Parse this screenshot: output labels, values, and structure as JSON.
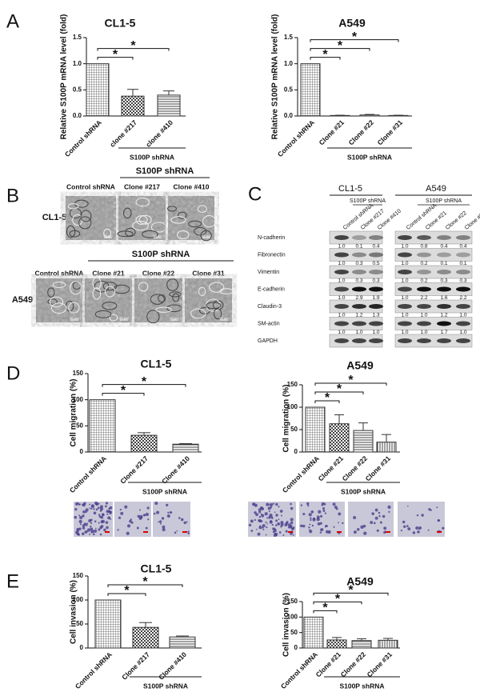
{
  "panels": [
    "A",
    "B",
    "C",
    "D",
    "E"
  ],
  "chart_data": [
    {
      "type": "bar",
      "title": "CL1-5",
      "y_label": "Relative S100P mRNA level (fold)",
      "categories": [
        "Control shRNA",
        "clone #217",
        "clone #410"
      ],
      "values": [
        1.0,
        0.38,
        0.4
      ],
      "errors": [
        0,
        0.13,
        0.08
      ],
      "bar_patterns": [
        "grid",
        "checker",
        "hlines"
      ],
      "color": "#333333",
      "ylim": [
        0,
        1.5
      ],
      "yticks": [
        {
          "value": 0,
          "label": "0.0"
        },
        {
          "value": 0.5,
          "label": "0.5"
        },
        {
          "value": 1,
          "label": "1.0"
        },
        {
          "value": 1.5,
          "label": "1.5"
        }
      ],
      "group_label": "S100P shRNA",
      "comparisons": [
        {
          "pair": [
            0,
            1
          ],
          "label": "*"
        },
        {
          "pair": [
            0,
            2
          ],
          "label": "*"
        }
      ]
    },
    {
      "type": "bar",
      "title": "A549",
      "y_label": "Relative S100P mRNA level (fold)",
      "categories": [
        "Control shRNA",
        "Clone #21",
        "Clone #22",
        "Clone #31"
      ],
      "values": [
        1.0,
        0.01,
        0.02,
        0.01
      ],
      "errors": [
        0,
        0.005,
        0.01,
        0.005
      ],
      "bar_patterns": [
        "grid",
        "checker",
        "hlines",
        "vlines"
      ],
      "color": "#333333",
      "ylim": [
        0,
        1.5
      ],
      "yticks": [
        {
          "value": 0,
          "label": "0.0"
        },
        {
          "value": 0.5,
          "label": "0.5"
        },
        {
          "value": 1,
          "label": "1.0"
        },
        {
          "value": 1.5,
          "label": "1.5"
        }
      ],
      "group_label": "S100P shRNA",
      "comparisons": [
        {
          "pair": [
            0,
            1
          ],
          "label": "*"
        },
        {
          "pair": [
            0,
            2
          ],
          "label": "*"
        },
        {
          "pair": [
            0,
            3
          ],
          "label": "*"
        }
      ]
    },
    {
      "type": "bar",
      "title": "CL1-5",
      "y_label": "Cell migration (%)",
      "categories": [
        "Control shRNA",
        "Clone #217",
        "Clone #410"
      ],
      "values": [
        100,
        32,
        15
      ],
      "errors": [
        0,
        5,
        1
      ],
      "bar_patterns": [
        "grid",
        "checker",
        "hlines"
      ],
      "color": "#333333",
      "ylim": [
        0,
        150
      ],
      "yticks": [
        0,
        50,
        100,
        150
      ],
      "group_label": "S100P shRNA",
      "comparisons": [
        {
          "pair": [
            0,
            1
          ],
          "label": "*"
        },
        {
          "pair": [
            0,
            2
          ],
          "label": "*"
        }
      ]
    },
    {
      "type": "bar",
      "title": "A549",
      "y_label": "Cell migration (%)",
      "categories": [
        "Control shRNA",
        "Clone #21",
        "Clone #22",
        "Clone #31"
      ],
      "values": [
        100,
        63,
        48,
        22
      ],
      "errors": [
        0,
        20,
        17,
        17
      ],
      "bar_patterns": [
        "grid",
        "checker",
        "hlines",
        "vlines"
      ],
      "color": "#333333",
      "ylim": [
        0,
        150
      ],
      "yticks": [
        0,
        50,
        100,
        150
      ],
      "group_label": "S100P shRNA",
      "comparisons": [
        {
          "pair": [
            0,
            1
          ],
          "label": "*"
        },
        {
          "pair": [
            0,
            2
          ],
          "label": "*"
        },
        {
          "pair": [
            0,
            3
          ],
          "label": "*"
        }
      ]
    },
    {
      "type": "bar",
      "title": "CL1-5",
      "y_label": "Cell invasion (%)",
      "categories": [
        "Control shRNA",
        "Clone #217",
        "Clone #410"
      ],
      "values": [
        100,
        43,
        23
      ],
      "errors": [
        0,
        10,
        2
      ],
      "bar_patterns": [
        "grid",
        "checker",
        "hlines"
      ],
      "color": "#333333",
      "ylim": [
        0,
        150
      ],
      "yticks": [
        0,
        50,
        100,
        150
      ],
      "group_label": "S100P shRNA",
      "comparisons": [
        {
          "pair": [
            0,
            1
          ],
          "label": "*"
        },
        {
          "pair": [
            0,
            2
          ],
          "label": "*"
        }
      ]
    },
    {
      "type": "bar",
      "title": "A549",
      "y_label": "Cell invasion (%)",
      "categories": [
        "Control shRNA",
        "Clone #21",
        "Clone #22",
        "Clone #31"
      ],
      "values": [
        100,
        26,
        24,
        25
      ],
      "errors": [
        0,
        8,
        6,
        6
      ],
      "bar_patterns": [
        "grid",
        "checker",
        "hlines",
        "vlines"
      ],
      "color": "#333333",
      "ylim": [
        0,
        150
      ],
      "yticks": [
        0,
        50,
        100,
        150
      ],
      "group_label": "S100P shRNA",
      "comparisons": [
        {
          "pair": [
            0,
            1
          ],
          "label": "*"
        },
        {
          "pair": [
            0,
            2
          ],
          "label": "*"
        },
        {
          "pair": [
            0,
            3
          ],
          "label": "*"
        }
      ]
    }
  ],
  "micrographs": [
    {
      "cell_line": "CL1-5",
      "control": "Control shRNA",
      "group_label": "S100P shRNA",
      "clones": [
        "Clone #217",
        "Clone #410"
      ],
      "scale_bar": "50 μm"
    },
    {
      "cell_line": "A549",
      "control": "Control shRNA",
      "group_label": "S100P shRNA",
      "clones": [
        "Clone #21",
        "Clone #22",
        "Clone #31"
      ],
      "scale_bar": "50 μm"
    }
  ],
  "blot": {
    "groups": [
      {
        "name": "CL1-5",
        "lanes": [
          "Control shRNA",
          "Clone #217",
          "Clone #410"
        ],
        "group_label": "S100P shRNA"
      },
      {
        "name": "A549",
        "lanes": [
          "Control shRNA",
          "Clone #21",
          "Clone #22",
          "Clone #31"
        ],
        "group_label": "S100P shRNA"
      }
    ],
    "rows": [
      {
        "protein": "N-cadherin",
        "ratios": [
          [
            "1.0",
            "0.1",
            "0.4"
          ],
          [
            "1.0",
            "0.8",
            "0.4",
            "0.4"
          ]
        ]
      },
      {
        "protein": "Fibronectin",
        "ratios": [
          [
            "1.0",
            "0.3",
            "0.5"
          ],
          [
            "1.0",
            "0.2",
            "0.1",
            "0.1"
          ]
        ]
      },
      {
        "protein": "Vimentin",
        "ratios": [
          [
            "1.0",
            "0.3",
            "0.3"
          ],
          [
            "1.0",
            "0.2",
            "0.3",
            "0.3"
          ]
        ]
      },
      {
        "protein": "E-cadherin",
        "ratios": [
          [
            "1.0",
            "2.9",
            "1.9"
          ],
          [
            "1.0",
            "2.2",
            "1.6",
            "2.2"
          ]
        ]
      },
      {
        "protein": "Claudin-3",
        "ratios": [
          [
            "1.0",
            "1.2",
            "1.3"
          ],
          [
            "1.0",
            "1.0",
            "1.2",
            "1.0"
          ]
        ]
      },
      {
        "protein": "SM-actin",
        "ratios": [
          [
            "1.0",
            "1.0",
            "1.0"
          ],
          [
            "1.0",
            "1.0",
            "1.7",
            "1.0"
          ]
        ]
      },
      {
        "protein": "GAPDH"
      }
    ]
  }
}
